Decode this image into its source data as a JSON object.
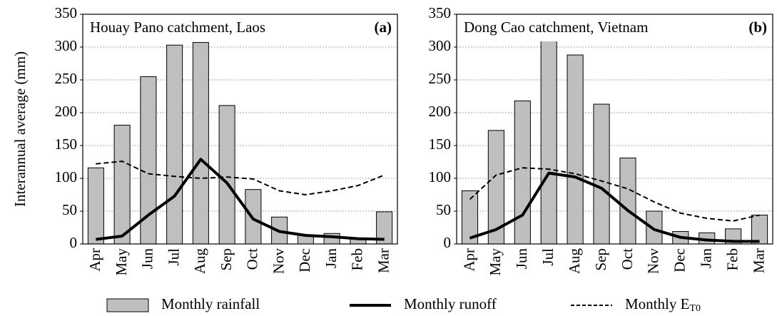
{
  "chart_data": [
    {
      "type": "bar",
      "title": "Houay Pano catchment, Laos",
      "panel_label": "(a)",
      "ylabel": "Interannual average (mm)",
      "categories": [
        "Apr",
        "May",
        "Jun",
        "Jul",
        "Aug",
        "Sep",
        "Oct",
        "Nov",
        "Dec",
        "Jan",
        "Feb",
        "Mar"
      ],
      "ylim": [
        0,
        350
      ],
      "yticks": [
        0,
        50,
        100,
        150,
        200,
        250,
        300,
        350
      ],
      "grid": true,
      "series": [
        {
          "name": "Monthly rainfall",
          "kind": "bar",
          "color": "#bfbfbf",
          "values": [
            116,
            181,
            255,
            303,
            307,
            211,
            83,
            41,
            14,
            16,
            9,
            49
          ]
        },
        {
          "name": "Monthly runoff",
          "kind": "line",
          "color": "#000000",
          "values": [
            7,
            12,
            44,
            73,
            129,
            93,
            38,
            19,
            13,
            11,
            8,
            7
          ]
        },
        {
          "name": "Monthly E",
          "name_subscript": "T0",
          "kind": "dashed",
          "color": "#000000",
          "values": [
            122,
            126,
            107,
            103,
            100,
            102,
            99,
            81,
            75,
            81,
            89,
            105
          ]
        }
      ]
    },
    {
      "type": "bar",
      "title": "Dong Cao catchment, Vietnam",
      "panel_label": "(b)",
      "categories": [
        "Apr",
        "May",
        "Jun",
        "Jul",
        "Aug",
        "Sep",
        "Oct",
        "Nov",
        "Dec",
        "Jan",
        "Feb",
        "Mar"
      ],
      "ylim": [
        0,
        350
      ],
      "yticks": [
        0,
        50,
        100,
        150,
        200,
        250,
        300,
        350
      ],
      "grid": true,
      "series": [
        {
          "kind": "bar",
          "color": "#bfbfbf",
          "values": [
            81,
            173,
            218,
            312,
            288,
            213,
            131,
            50,
            19,
            17,
            23,
            44
          ]
        },
        {
          "kind": "line",
          "color": "#000000",
          "values": [
            9,
            22,
            44,
            108,
            102,
            85,
            51,
            22,
            10,
            6,
            4,
            4
          ]
        },
        {
          "kind": "dashed",
          "color": "#000000",
          "values": [
            68,
            105,
            116,
            114,
            107,
            96,
            84,
            64,
            47,
            39,
            35,
            44
          ]
        }
      ]
    }
  ]
}
